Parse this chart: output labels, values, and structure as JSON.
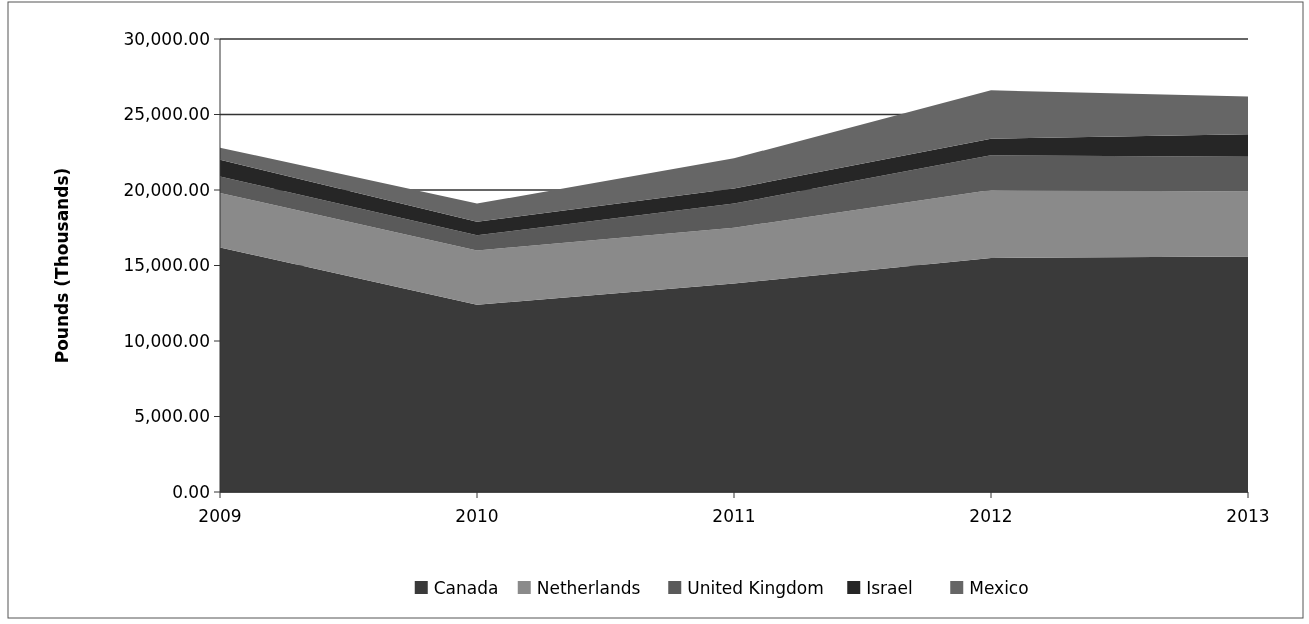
{
  "chart_data": {
    "type": "area",
    "stacked": true,
    "categories": [
      "2009",
      "2010",
      "2011",
      "2012",
      "2013"
    ],
    "ylabel": "Pounds (Thousands)",
    "ylim": [
      0,
      30000
    ],
    "yticks": [
      {
        "value": 0,
        "label": "0.00"
      },
      {
        "value": 5000,
        "label": "5,000.00"
      },
      {
        "value": 10000,
        "label": "10,000.00"
      },
      {
        "value": 15000,
        "label": "15,000.00"
      },
      {
        "value": 20000,
        "label": "20,000.00"
      },
      {
        "value": 25000,
        "label": "25,000.00"
      },
      {
        "value": 30000,
        "label": "30,000.00"
      }
    ],
    "grid": "y",
    "legend": "bottom",
    "series": [
      {
        "name": "Canada",
        "color": "#3a3a3a",
        "values": [
          16200,
          12400,
          13800,
          15500,
          15600
        ]
      },
      {
        "name": "Netherlands",
        "color": "#8a8a8a",
        "values": [
          3600,
          3600,
          3700,
          4500,
          4300
        ]
      },
      {
        "name": "United Kingdom",
        "color": "#5a5a5a",
        "values": [
          1100,
          1000,
          1600,
          2300,
          2300
        ]
      },
      {
        "name": "Israel",
        "color": "#262626",
        "values": [
          1100,
          900,
          1000,
          1100,
          1500
        ]
      },
      {
        "name": "Mexico",
        "color": "#666666",
        "values": [
          800,
          1200,
          2000,
          3200,
          2500
        ]
      }
    ]
  }
}
